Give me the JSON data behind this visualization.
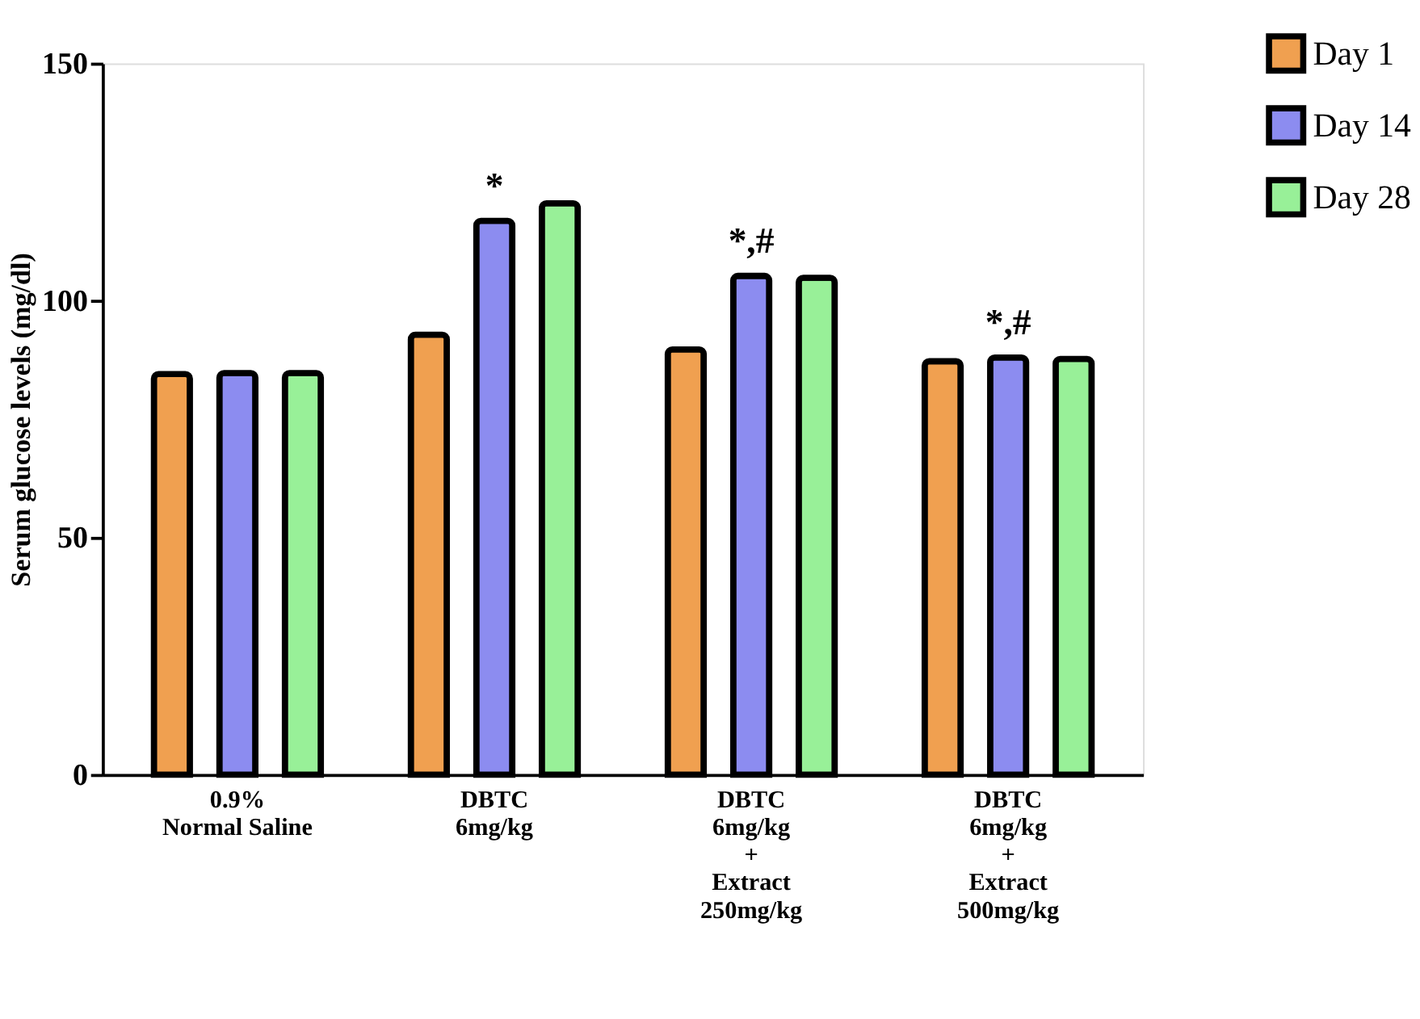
{
  "chart_data": {
    "type": "bar",
    "ylabel": "Serum glucose levels (mg/dl)",
    "categories": [
      "0.9%\nNormal Saline",
      "DBTC\n6mg/kg",
      "DBTC\n6mg/kg\n+\nExtract\n250mg/kg",
      "DBTC\n6mg/kg\n+\nExtract\n500mg/kg"
    ],
    "series": [
      {
        "name": "Day 1",
        "color": "#f0a050",
        "values": [
          84.5,
          92.8,
          89.7,
          87.2
        ]
      },
      {
        "name": "Day 14",
        "color": "#8c8cf0",
        "values": [
          84.7,
          116.8,
          105.2,
          88.0
        ]
      },
      {
        "name": "Day 28",
        "color": "#98f098",
        "values": [
          84.7,
          120.5,
          104.8,
          87.7
        ]
      }
    ],
    "ylim": [
      0,
      150
    ],
    "yticks": [
      0,
      50,
      100,
      150
    ],
    "grid": false,
    "legend": "top right",
    "annotations": [
      {
        "text": "*",
        "x": "DBTC\n6mg/kg",
        "y": 116.8
      },
      {
        "text": "*,#",
        "x": "DBTC\n6mg/kg\n+\nExtract\n250mg/kg",
        "y": 105.2
      },
      {
        "text": "*,#",
        "x": "DBTC\n6mg/kg\n+\nExtract\n500mg/kg",
        "y": 88.0
      }
    ]
  }
}
